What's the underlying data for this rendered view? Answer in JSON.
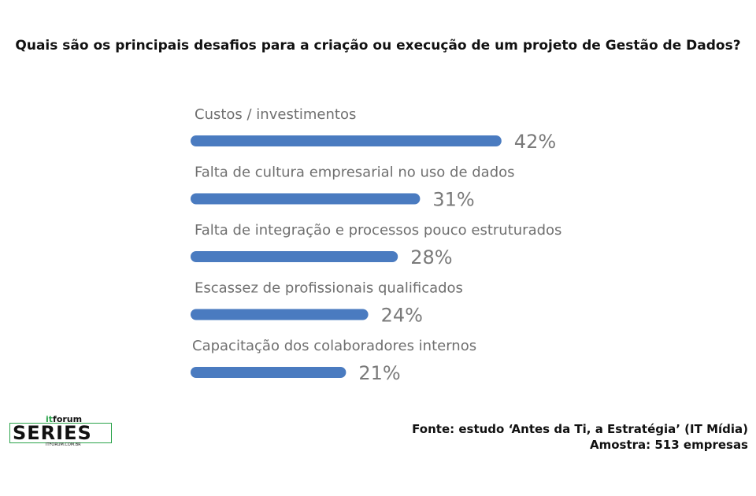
{
  "title": "Quais são os principais desafios para a criação ou execução de um projeto de Gestão de Dados?",
  "chart_data": {
    "type": "bar",
    "orientation": "horizontal",
    "categories": [
      "Custos / investimentos",
      "Falta de cultura empresarial no uso de dados",
      "Falta de integração e processos pouco estruturados",
      "Escassez de profissionais qualificados",
      "Capacitação dos colaboradores internos"
    ],
    "values": [
      42,
      31,
      28,
      24,
      21
    ],
    "value_labels": [
      "42%",
      "31%",
      "28%",
      "24%",
      "21%"
    ],
    "bar_color": "#4a7bc0",
    "grid": false,
    "legend": "none"
  },
  "source": {
    "line1": "Fonte: estudo ‘Antes da Ti, a Estratégia’ (IT Mídia)",
    "line2": "Amostra: 513 empresas"
  },
  "logo": {
    "prefix": "it",
    "brand": "forum",
    "word": "SERIES",
    "sub": "ITFORUM.COM.BR"
  }
}
